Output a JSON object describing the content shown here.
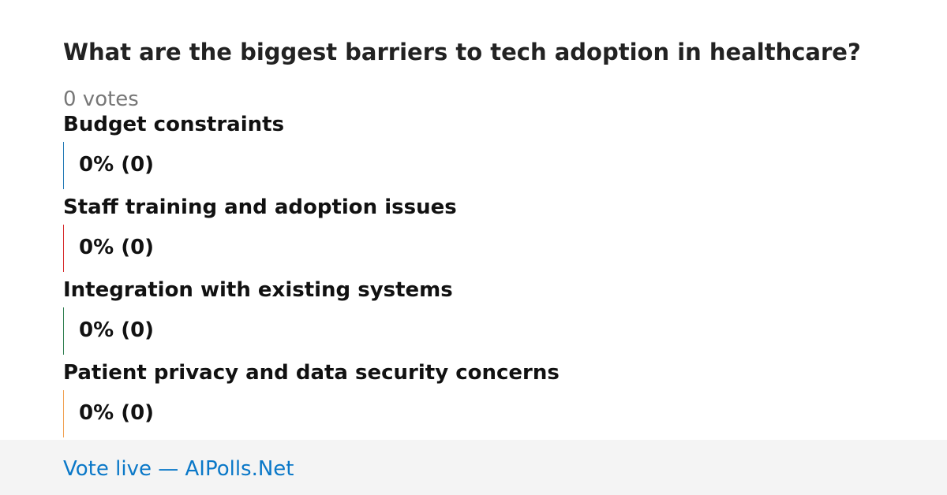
{
  "title": "What are the biggest barriers to tech adoption in healthcare?",
  "total": "0 votes",
  "options": [
    {
      "label": "Budget constraints",
      "result": "0% (0)",
      "color": "#1f77b4"
    },
    {
      "label": "Staff training and adoption issues",
      "result": "0% (0)",
      "color": "#d62728"
    },
    {
      "label": "Integration with existing systems",
      "result": "0% (0)",
      "color": "#2e7d4f"
    },
    {
      "label": "Patient privacy and data security concerns",
      "result": "0% (0)",
      "color": "#f0a050"
    }
  ],
  "footer": "Vote live — AIPolls.Net"
}
